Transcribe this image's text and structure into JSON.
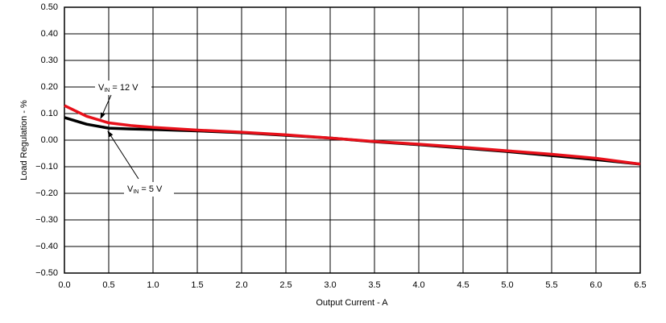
{
  "chart_data": {
    "type": "line",
    "x_label": "Output Current - A",
    "y_label": "Load Regulation - %",
    "x": [
      0,
      0.25,
      0.5,
      0.75,
      1.0,
      1.5,
      2.0,
      2.5,
      3.0,
      3.5,
      4.0,
      4.5,
      5.0,
      5.5,
      6.0,
      6.5
    ],
    "series": [
      {
        "color": "#000000",
        "values": [
          0.085,
          0.06,
          0.045,
          0.042,
          0.04,
          0.035,
          0.028,
          0.018,
          0.008,
          -0.006,
          -0.017,
          -0.03,
          -0.043,
          -0.058,
          -0.073,
          -0.09
        ]
      },
      {
        "color": "#e8101a",
        "values": [
          0.13,
          0.09,
          0.065,
          0.055,
          0.048,
          0.038,
          0.03,
          0.02,
          0.008,
          -0.005,
          -0.015,
          -0.027,
          -0.04,
          -0.053,
          -0.068,
          -0.09
        ]
      }
    ],
    "annotations": [
      {
        "base": "V",
        "sub": "IN",
        "text": " = 12 V"
      },
      {
        "base": "V",
        "sub": "IN",
        "text": " = 5 V"
      }
    ],
    "xlim": [
      0,
      6.5
    ],
    "ylim": [
      -0.5,
      0.5
    ],
    "xticks": [
      {
        "value": 0,
        "label": "0.0"
      },
      {
        "value": 0.5,
        "label": "0.5"
      },
      {
        "value": 1,
        "label": "1.0"
      },
      {
        "value": 1.5,
        "label": "1.5"
      },
      {
        "value": 2,
        "label": "2.0"
      },
      {
        "value": 2.5,
        "label": "2.5"
      },
      {
        "value": 3,
        "label": "3.0"
      },
      {
        "value": 3.5,
        "label": "3.5"
      },
      {
        "value": 4,
        "label": "4.0"
      },
      {
        "value": 4.5,
        "label": "4.5"
      },
      {
        "value": 5,
        "label": "5.0"
      },
      {
        "value": 5.5,
        "label": "5.5"
      },
      {
        "value": 6,
        "label": "6.0"
      },
      {
        "value": 6.5,
        "label": "6.5"
      }
    ],
    "yticks": [
      {
        "value": -0.5,
        "label": "−0.50"
      },
      {
        "value": -0.4,
        "label": "−0.40"
      },
      {
        "value": -0.3,
        "label": "−0.30"
      },
      {
        "value": -0.2,
        "label": "−0.20"
      },
      {
        "value": -0.1,
        "label": "−0.10"
      },
      {
        "value": 0,
        "label": "0.00"
      },
      {
        "value": 0.1,
        "label": "0.10"
      },
      {
        "value": 0.2,
        "label": "0.20"
      },
      {
        "value": 0.3,
        "label": "0.30"
      },
      {
        "value": 0.4,
        "label": "0.40"
      },
      {
        "value": 0.5,
        "label": "0.50"
      }
    ],
    "grid": true
  }
}
